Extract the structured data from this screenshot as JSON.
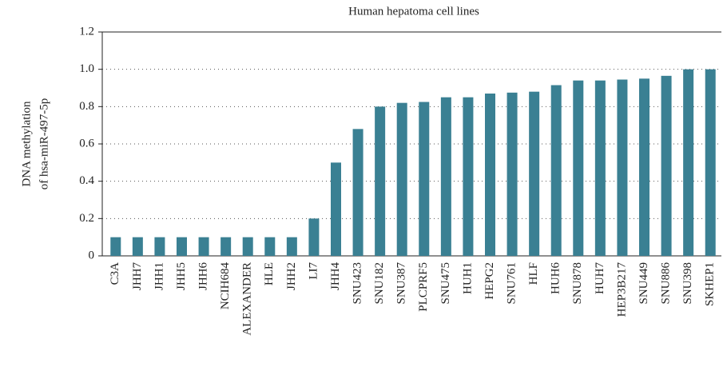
{
  "chart_data": {
    "type": "bar",
    "title": "Human hepatoma cell lines",
    "ylabel": [
      "DNA methylation",
      "of hsa-miR-497-5p"
    ],
    "categories": [
      "C3A",
      "JHH7",
      "JHH1",
      "JHH5",
      "JHH6",
      "NCIH684",
      "ALEXANDER",
      "HLE",
      "JHH2",
      "LI7",
      "JHH4",
      "SNU423",
      "SNU182",
      "SNU387",
      "PLCPRF5",
      "SNU475",
      "HUH1",
      "HEPG2",
      "SNU761",
      "HLF",
      "HUH6",
      "SNU878",
      "HUH7",
      "HEP3B217",
      "SNU449",
      "SNU886",
      "SNU398",
      "SKHEP1"
    ],
    "values": [
      0.1,
      0.1,
      0.1,
      0.1,
      0.1,
      0.1,
      0.1,
      0.1,
      0.1,
      0.2,
      0.5,
      0.68,
      0.8,
      0.82,
      0.825,
      0.85,
      0.85,
      0.87,
      0.875,
      0.88,
      0.915,
      0.94,
      0.94,
      0.945,
      0.95,
      0.965,
      1.0,
      1.0
    ],
    "color": "#3a8093",
    "ylim": [
      0,
      1.2
    ],
    "yticks": [
      0,
      0.2,
      0.4,
      0.6,
      0.8,
      {
        "value": 1,
        "label": "1.0"
      },
      1.2
    ],
    "grid": true
  }
}
